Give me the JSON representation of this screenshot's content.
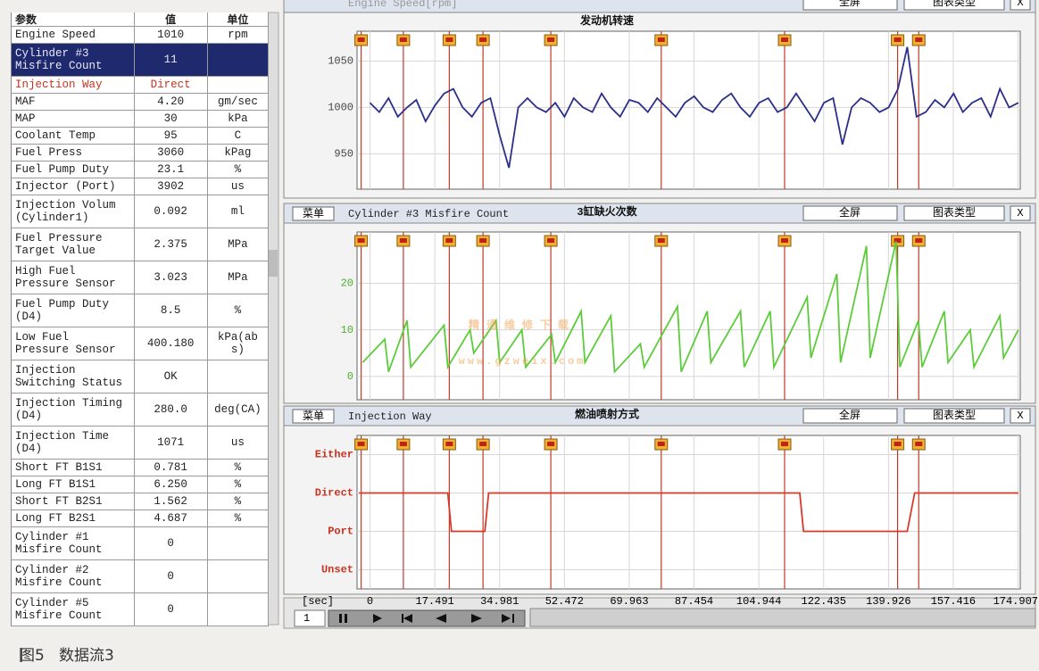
{
  "table": {
    "header": [
      "参数",
      "值",
      "单位"
    ],
    "selected_row": 1,
    "rows": [
      {
        "name": [
          "Engine Speed"
        ],
        "value": "1010",
        "unit": "rpm"
      },
      {
        "name": [
          "Cylinder #3",
          "Misfire Count"
        ],
        "value": "11",
        "unit": ""
      },
      {
        "name": [
          "Injection Way"
        ],
        "value": "Direct",
        "unit": "",
        "color": "#c8321e"
      },
      {
        "name": [
          "MAF"
        ],
        "value": "4.20",
        "unit": "gm/sec"
      },
      {
        "name": [
          "MAP"
        ],
        "value": "30",
        "unit": "kPa"
      },
      {
        "name": [
          "Coolant Temp"
        ],
        "value": "95",
        "unit": "C"
      },
      {
        "name": [
          "Fuel Press"
        ],
        "value": "3060",
        "unit": "kPag"
      },
      {
        "name": [
          "Fuel Pump Duty"
        ],
        "value": "23.1",
        "unit": "%"
      },
      {
        "name": [
          "Injector (Port)"
        ],
        "value": "3902",
        "unit": "us"
      },
      {
        "name": [
          "Injection Volum",
          "(Cylinder1)"
        ],
        "value": "0.092",
        "unit": "ml"
      },
      {
        "name": [
          "Fuel Pressure",
          "Target Value"
        ],
        "value": "2.375",
        "unit": "MPa"
      },
      {
        "name": [
          "High Fuel",
          "Pressure Sensor"
        ],
        "value": "3.023",
        "unit": "MPa"
      },
      {
        "name": [
          "Fuel Pump Duty",
          "(D4)"
        ],
        "value": "8.5",
        "unit": "%"
      },
      {
        "name": [
          "Low Fuel",
          "Pressure Sensor"
        ],
        "value": "400.180",
        "unit": "kPa(abs)"
      },
      {
        "name": [
          "Injection",
          "Switching Status"
        ],
        "value": "OK",
        "unit": ""
      },
      {
        "name": [
          "Injection Timing",
          "(D4)"
        ],
        "value": "280.0",
        "unit": "deg(CA)"
      },
      {
        "name": [
          "Injection Time",
          "(D4)"
        ],
        "value": "1071",
        "unit": "us"
      },
      {
        "name": [
          "Short FT B1S1"
        ],
        "value": "0.781",
        "unit": "%"
      },
      {
        "name": [
          "Long FT B1S1"
        ],
        "value": "6.250",
        "unit": "%"
      },
      {
        "name": [
          "Short FT B2S1"
        ],
        "value": "1.562",
        "unit": "%"
      },
      {
        "name": [
          "Long FT B2S1"
        ],
        "value": "4.687",
        "unit": "%"
      },
      {
        "name": [
          "Cylinder #1",
          "Misfire Count"
        ],
        "value": "0",
        "unit": ""
      },
      {
        "name": [
          "Cylinder #2",
          "Misfire Count"
        ],
        "value": "0",
        "unit": ""
      },
      {
        "name": [
          "Cylinder #5",
          "Misfire Count"
        ],
        "value": "0",
        "unit": ""
      }
    ]
  },
  "graphs": {
    "menu": "菜单",
    "fullscreen": "全屏",
    "chart_type": "图表类型",
    "close": "X",
    "events": [
      -2.4,
      9.0,
      21.4,
      30.5,
      48.8,
      78.6,
      111.9,
      142.4,
      148.1
    ],
    "xaxis": {
      "label": "[sec]",
      "xlim": [
        -3.5,
        175.5
      ],
      "xticks": [
        0,
        17.491,
        34.981,
        52.472,
        69.963,
        87.454,
        104.944,
        122.435,
        139.926,
        157.416,
        174.907
      ]
    },
    "panels": [
      {
        "name": "Engine Speed[rpm]",
        "title": "发动机转速",
        "color": "#2b2f8a",
        "tick_color": "#444444",
        "ylim": [
          912,
          1082
        ],
        "yticks": [
          950,
          1000,
          1050
        ],
        "x": [
          0,
          2.5,
          5,
          7.5,
          10,
          12.5,
          15,
          17.5,
          20,
          22.5,
          25,
          27.5,
          30,
          32.5,
          35,
          37.5,
          40,
          42.5,
          45,
          47.5,
          50,
          52.5,
          55,
          57.5,
          60,
          62.5,
          65,
          67.5,
          70,
          72.5,
          75,
          77.5,
          80,
          82.5,
          85,
          87.5,
          90,
          92.5,
          95,
          97.5,
          100,
          102.5,
          105,
          107.5,
          110,
          112.5,
          115,
          117.5,
          120,
          122.5,
          125,
          127.5,
          130,
          132.5,
          135,
          137.5,
          140,
          142.5,
          145,
          147.5,
          150,
          152.5,
          155,
          157.5,
          160,
          162.5,
          165,
          167.5,
          170,
          172.5,
          175
        ],
        "values": [
          1005,
          995,
          1010,
          990,
          1000,
          1008,
          985,
          1002,
          1015,
          1020,
          1000,
          990,
          1005,
          1010,
          970,
          935,
          1000,
          1010,
          1000,
          995,
          1005,
          990,
          1010,
          1000,
          995,
          1015,
          1000,
          990,
          1008,
          1005,
          995,
          1010,
          1000,
          990,
          1005,
          1012,
          1000,
          995,
          1008,
          1015,
          1000,
          990,
          1005,
          1010,
          995,
          1000,
          1015,
          1000,
          985,
          1005,
          1010,
          960,
          1000,
          1010,
          1005,
          995,
          1000,
          1020,
          1065,
          990,
          995,
          1008,
          1000,
          1015,
          995,
          1005,
          1010,
          990,
          1020,
          1000,
          1005
        ]
      },
      {
        "name": "Cylinder #3 Misfire Count",
        "title": "3缸缺火次数",
        "color": "#5ccc3a",
        "tick_color": "#4caf2a",
        "ylim": [
          -5,
          31
        ],
        "yticks": [
          0,
          10,
          20
        ],
        "x": [
          -2,
          4,
          5,
          10,
          11,
          20,
          21,
          27,
          28,
          34,
          35,
          41,
          42,
          49,
          50,
          57,
          58,
          65,
          66,
          73,
          74,
          83,
          84,
          91,
          92,
          100,
          101,
          108,
          109,
          118,
          119,
          126,
          127,
          134,
          135,
          142,
          143,
          148,
          149,
          155,
          156,
          162,
          163,
          170,
          171,
          175
        ],
        "values": [
          3,
          8,
          1,
          12,
          2,
          11,
          2,
          10,
          5,
          12,
          3,
          10,
          2,
          9,
          3,
          14,
          3,
          13,
          1,
          7,
          2,
          15,
          1,
          14,
          3,
          14,
          2,
          14,
          2,
          17,
          4,
          22,
          3,
          28,
          4,
          29,
          2,
          12,
          2,
          14,
          3,
          10,
          2,
          13,
          4,
          10
        ]
      },
      {
        "name": "Injection Way",
        "title": "燃油喷射方式",
        "color": "#d83a2a",
        "tick_color": "#c8321e",
        "ylim": [
          -0.5,
          3.5
        ],
        "yticks": [
          {
            "value": 3,
            "label": "Either"
          },
          {
            "value": 2,
            "label": "Direct"
          },
          {
            "value": 1,
            "label": "Port"
          },
          {
            "value": 0,
            "label": "Unset"
          }
        ],
        "x": [
          -3,
          21,
          22,
          31,
          32,
          116,
          117,
          145,
          147,
          175
        ],
        "values": [
          2,
          2,
          1,
          1,
          2,
          2,
          1,
          1,
          2,
          2
        ]
      }
    ]
  },
  "watermark": [
    "精通维修下载",
    "www.gzweix.com"
  ],
  "playback": {
    "speed": "1"
  },
  "caption": {
    "figure": "图5",
    "text": "数据流3"
  }
}
